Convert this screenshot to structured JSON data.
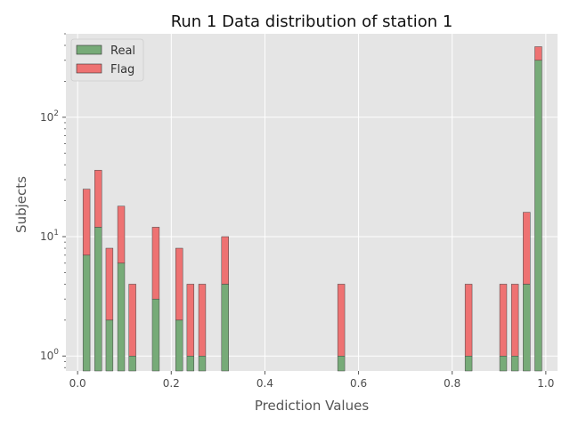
{
  "chart_data": {
    "type": "bar",
    "stacked": true,
    "title": "Run 1 Data distribution of station 1",
    "xlabel": "Prediction Values",
    "ylabel": "Subjects",
    "xlim": [
      -0.025,
      1.025
    ],
    "ylim": [
      0.75,
      500
    ],
    "yscale": "log",
    "bar_width": 0.015,
    "x": [
      0.019,
      0.044,
      0.068,
      0.093,
      0.117,
      0.167,
      0.217,
      0.241,
      0.266,
      0.315,
      0.563,
      0.835,
      0.909,
      0.934,
      0.959,
      0.984
    ],
    "series": [
      {
        "name": "Real",
        "color": "#77ab78",
        "values": [
          7,
          12,
          2,
          6,
          1,
          3,
          2,
          1,
          1,
          4,
          1,
          1,
          1,
          1,
          4,
          300
        ]
      },
      {
        "name": "Flag",
        "color": "#ee7272",
        "values": [
          18,
          24,
          6,
          12,
          3,
          9,
          6,
          3,
          3,
          6,
          3,
          3,
          3,
          3,
          12,
          90
        ]
      }
    ],
    "xticks": [
      {
        "value": 0.0,
        "label": "0.0"
      },
      {
        "value": 0.2,
        "label": "0.2"
      },
      {
        "value": 0.4,
        "label": "0.4"
      },
      {
        "value": 0.6,
        "label": "0.6"
      },
      {
        "value": 0.8,
        "label": "0.8"
      },
      {
        "value": 1.0,
        "label": "1.0"
      }
    ],
    "yticks": [
      {
        "value": 1,
        "base": "10",
        "exp": "0"
      },
      {
        "value": 10,
        "base": "10",
        "exp": "1"
      },
      {
        "value": 100,
        "base": "10",
        "exp": "2"
      }
    ],
    "grid": true,
    "legend_position": "upper-left",
    "style": {
      "background": "#e5e5e5",
      "grid": "#ffffff"
    }
  }
}
